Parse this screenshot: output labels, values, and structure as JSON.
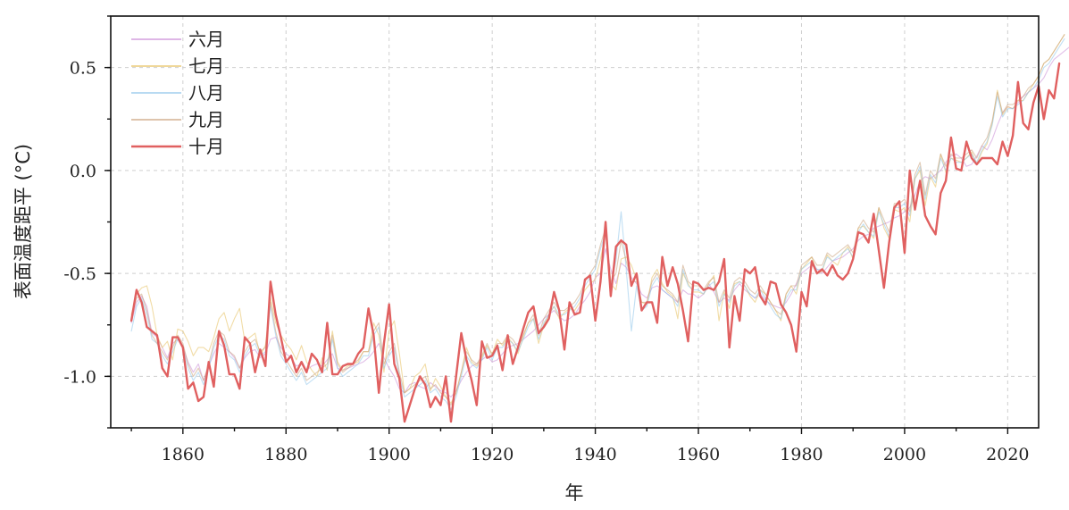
{
  "chart_data": {
    "type": "line",
    "title": "",
    "xlabel": "年",
    "ylabel": "表面温度距平 (°C)",
    "xlim": [
      1846,
      1826
    ],
    "ylim": [
      -1.25,
      0.75
    ],
    "xticks": [
      1860,
      1880,
      1900,
      1920,
      1940,
      1960,
      1980,
      2000,
      2020
    ],
    "yticks": [
      -1.0,
      -0.5,
      0.0,
      0.5
    ],
    "ytick_labels": [
      "-1.0",
      "-0.5",
      "0.0",
      "0.5"
    ],
    "grid": true,
    "legend_position": "top-left",
    "x_start": 1850,
    "series": [
      {
        "name": "六月",
        "color": "#c98ad6",
        "values": [
          -0.74,
          -0.64,
          -0.61,
          -0.66,
          -0.79,
          -0.81,
          -0.86,
          -0.91,
          -0.84,
          -0.82,
          -0.86,
          -0.93,
          -0.98,
          -0.94,
          -1.02,
          -0.95,
          -0.89,
          -0.84,
          -0.86,
          -0.88,
          -0.91,
          -0.96,
          -0.91,
          -0.88,
          -0.87,
          -0.91,
          -0.89,
          -0.82,
          -0.81,
          -0.86,
          -0.89,
          -0.91,
          -0.95,
          -0.94,
          -0.97,
          -0.95,
          -0.94,
          -0.95,
          -0.92,
          -0.89,
          -0.96,
          -0.97,
          -0.96,
          -0.95,
          -0.94,
          -0.93,
          -0.91,
          -0.88,
          -0.84,
          -0.91,
          -0.96,
          -1.0,
          -1.06,
          -1.08,
          -1.04,
          -1.03,
          -1.05,
          -1.06,
          -1.03,
          -1.05,
          -1.07,
          -1.08,
          -1.1,
          -1.07,
          -1.02,
          -0.98,
          -0.95,
          -0.94,
          -0.92,
          -0.9,
          -0.93,
          -0.92,
          -0.89,
          -0.86,
          -0.85,
          -0.84,
          -0.82,
          -0.8,
          -0.78,
          -0.75,
          -0.72,
          -0.7,
          -0.68,
          -0.71,
          -0.73,
          -0.72,
          -0.7,
          -0.66,
          -0.63,
          -0.59,
          -0.52,
          -0.5,
          -0.38,
          -0.48,
          -0.55,
          -0.45,
          -0.47,
          -0.52,
          -0.55,
          -0.6,
          -0.62,
          -0.57,
          -0.56,
          -0.58,
          -0.6,
          -0.62,
          -0.64,
          -0.58,
          -0.6,
          -0.6,
          -0.62,
          -0.6,
          -0.55,
          -0.59,
          -0.64,
          -0.62,
          -0.63,
          -0.58,
          -0.55,
          -0.58,
          -0.6,
          -0.62,
          -0.6,
          -0.63,
          -0.65,
          -0.66,
          -0.67,
          -0.64,
          -0.6,
          -0.55,
          -0.5,
          -0.48,
          -0.46,
          -0.48,
          -0.5,
          -0.47,
          -0.44,
          -0.43,
          -0.42,
          -0.4,
          -0.38,
          -0.34,
          -0.32,
          -0.31,
          -0.28,
          -0.27,
          -0.26,
          -0.25,
          -0.23,
          -0.22,
          -0.2,
          -0.18,
          -0.12,
          -0.05,
          -0.03,
          -0.04,
          -0.02,
          0.0,
          0.04,
          0.07,
          0.08,
          0.06,
          0.02,
          0.03,
          0.07,
          0.12,
          0.1,
          0.15,
          0.22,
          0.28,
          0.31,
          0.3,
          0.33,
          0.36,
          0.38,
          0.4,
          0.42,
          0.45,
          0.5,
          0.54,
          0.56,
          0.58,
          0.6
        ]
      },
      {
        "name": "七月",
        "color": "#e5bf5c",
        "values": [
          -0.7,
          -0.6,
          -0.57,
          -0.56,
          -0.66,
          -0.8,
          -0.86,
          -0.83,
          -0.92,
          -0.77,
          -0.78,
          -0.83,
          -0.9,
          -0.86,
          -0.86,
          -0.88,
          -0.81,
          -0.72,
          -0.69,
          -0.78,
          -0.72,
          -0.67,
          -0.83,
          -0.81,
          -0.79,
          -0.9,
          -0.85,
          -0.62,
          -0.74,
          -0.8,
          -0.84,
          -0.87,
          -0.92,
          -0.85,
          -0.93,
          -0.97,
          -1.0,
          -0.91,
          -0.97,
          -0.78,
          -0.93,
          -0.97,
          -0.95,
          -0.94,
          -0.93,
          -0.88,
          -0.88,
          -0.74,
          -0.8,
          -0.98,
          -0.78,
          -0.73,
          -0.89,
          -1.08,
          -1.06,
          -1.0,
          -0.98,
          -0.94,
          -1.07,
          -1.01,
          -1.05,
          -1.1,
          -1.13,
          -1.08,
          -0.98,
          -0.86,
          -0.93,
          -0.95,
          -0.91,
          -0.85,
          -0.89,
          -0.82,
          -0.85,
          -0.81,
          -0.84,
          -0.89,
          -0.81,
          -0.74,
          -0.72,
          -0.84,
          -0.75,
          -0.7,
          -0.66,
          -0.72,
          -0.69,
          -0.67,
          -0.68,
          -0.64,
          -0.58,
          -0.55,
          -0.53,
          -0.43,
          -0.3,
          -0.55,
          -0.58,
          -0.43,
          -0.42,
          -0.46,
          -0.53,
          -0.64,
          -0.65,
          -0.52,
          -0.48,
          -0.55,
          -0.59,
          -0.61,
          -0.72,
          -0.5,
          -0.55,
          -0.59,
          -0.59,
          -0.6,
          -0.55,
          -0.51,
          -0.73,
          -0.59,
          -0.67,
          -0.55,
          -0.54,
          -0.56,
          -0.61,
          -0.64,
          -0.58,
          -0.6,
          -0.64,
          -0.68,
          -0.73,
          -0.6,
          -0.56,
          -0.6,
          -0.48,
          -0.45,
          -0.42,
          -0.5,
          -0.49,
          -0.41,
          -0.44,
          -0.46,
          -0.4,
          -0.37,
          -0.43,
          -0.28,
          -0.27,
          -0.3,
          -0.33,
          -0.18,
          -0.28,
          -0.33,
          -0.19,
          -0.2,
          -0.18,
          -0.25,
          -0.04,
          0.0,
          -0.17,
          -0.03,
          -0.08,
          0.08,
          -0.01,
          0.06,
          0.05,
          0.04,
          0.06,
          0.09,
          0.03,
          0.09,
          0.13,
          0.23,
          0.39,
          0.27,
          0.31,
          0.3,
          0.34,
          0.34,
          0.38,
          0.42,
          0.46,
          0.52,
          0.54,
          0.58,
          0.62,
          0.66
        ]
      },
      {
        "name": "八月",
        "color": "#8ec4ea",
        "values": [
          -0.78,
          -0.66,
          -0.62,
          -0.7,
          -0.82,
          -0.84,
          -0.9,
          -0.94,
          -0.88,
          -0.82,
          -0.86,
          -0.96,
          -1.02,
          -0.98,
          -1.04,
          -0.96,
          -0.86,
          -0.8,
          -0.82,
          -0.9,
          -0.92,
          -0.98,
          -0.9,
          -0.86,
          -0.84,
          -0.9,
          -0.88,
          -0.66,
          -0.8,
          -0.9,
          -0.94,
          -0.98,
          -1.02,
          -0.98,
          -1.04,
          -1.02,
          -1.0,
          -0.98,
          -0.96,
          -0.82,
          -0.96,
          -1.0,
          -0.98,
          -0.96,
          -0.94,
          -0.9,
          -0.9,
          -0.8,
          -0.76,
          -0.96,
          -0.9,
          -0.86,
          -1.0,
          -1.1,
          -1.08,
          -1.06,
          -1.04,
          -1.02,
          -1.08,
          -1.06,
          -1.1,
          -1.12,
          -1.16,
          -1.1,
          -1.0,
          -0.9,
          -0.94,
          -0.96,
          -0.92,
          -0.86,
          -0.92,
          -0.86,
          -0.86,
          -0.82,
          -0.84,
          -0.88,
          -0.82,
          -0.76,
          -0.72,
          -0.82,
          -0.74,
          -0.7,
          -0.66,
          -0.7,
          -0.7,
          -0.68,
          -0.66,
          -0.62,
          -0.56,
          -0.52,
          -0.48,
          -0.38,
          -0.3,
          -0.56,
          -0.44,
          -0.2,
          -0.48,
          -0.78,
          -0.56,
          -0.68,
          -0.66,
          -0.56,
          -0.52,
          -0.58,
          -0.6,
          -0.62,
          -0.66,
          -0.48,
          -0.56,
          -0.58,
          -0.58,
          -0.6,
          -0.56,
          -0.54,
          -0.66,
          -0.6,
          -0.64,
          -0.56,
          -0.54,
          -0.56,
          -0.6,
          -0.62,
          -0.58,
          -0.62,
          -0.66,
          -0.7,
          -0.72,
          -0.62,
          -0.58,
          -0.58,
          -0.48,
          -0.46,
          -0.44,
          -0.48,
          -0.48,
          -0.42,
          -0.44,
          -0.42,
          -0.4,
          -0.38,
          -0.42,
          -0.3,
          -0.26,
          -0.3,
          -0.32,
          -0.2,
          -0.26,
          -0.32,
          -0.18,
          -0.18,
          -0.16,
          -0.22,
          -0.04,
          0.02,
          -0.14,
          -0.02,
          -0.06,
          0.06,
          0.0,
          0.06,
          0.04,
          0.04,
          0.06,
          0.08,
          0.04,
          0.1,
          0.14,
          0.22,
          0.36,
          0.26,
          0.3,
          0.3,
          0.32,
          0.34,
          0.38,
          0.4,
          0.44,
          0.5,
          0.52,
          0.56,
          0.6,
          0.64
        ]
      },
      {
        "name": "九月",
        "color": "#c9a07a",
        "values": [
          -0.72,
          -0.62,
          -0.6,
          -0.68,
          -0.8,
          -0.84,
          -0.88,
          -0.92,
          -0.86,
          -0.8,
          -0.84,
          -0.94,
          -1.0,
          -0.96,
          -1.02,
          -0.94,
          -0.84,
          -0.78,
          -0.8,
          -0.88,
          -0.9,
          -0.96,
          -0.88,
          -0.84,
          -0.82,
          -0.88,
          -0.86,
          -0.64,
          -0.78,
          -0.88,
          -0.92,
          -0.96,
          -1.0,
          -0.96,
          -1.02,
          -1.0,
          -0.98,
          -0.96,
          -0.94,
          -0.8,
          -0.94,
          -0.98,
          -0.96,
          -0.94,
          -0.92,
          -0.88,
          -0.88,
          -0.78,
          -0.74,
          -0.94,
          -0.88,
          -0.84,
          -0.98,
          -1.08,
          -1.06,
          -1.04,
          -1.02,
          -1.0,
          -1.06,
          -1.04,
          -1.08,
          -1.1,
          -1.14,
          -1.08,
          -0.98,
          -0.88,
          -0.92,
          -0.94,
          -0.9,
          -0.84,
          -0.9,
          -0.84,
          -0.84,
          -0.8,
          -0.82,
          -0.86,
          -0.8,
          -0.74,
          -0.7,
          -0.8,
          -0.72,
          -0.68,
          -0.64,
          -0.68,
          -0.68,
          -0.66,
          -0.64,
          -0.6,
          -0.54,
          -0.5,
          -0.46,
          -0.36,
          -0.28,
          -0.54,
          -0.5,
          -0.34,
          -0.44,
          -0.54,
          -0.54,
          -0.64,
          -0.64,
          -0.54,
          -0.5,
          -0.56,
          -0.58,
          -0.6,
          -0.64,
          -0.46,
          -0.54,
          -0.56,
          -0.56,
          -0.58,
          -0.54,
          -0.52,
          -0.64,
          -0.58,
          -0.62,
          -0.54,
          -0.52,
          -0.54,
          -0.58,
          -0.6,
          -0.56,
          -0.6,
          -0.64,
          -0.68,
          -0.7,
          -0.6,
          -0.56,
          -0.56,
          -0.46,
          -0.44,
          -0.42,
          -0.46,
          -0.46,
          -0.4,
          -0.42,
          -0.4,
          -0.38,
          -0.36,
          -0.4,
          -0.28,
          -0.24,
          -0.28,
          -0.3,
          -0.18,
          -0.24,
          -0.3,
          -0.16,
          -0.16,
          -0.14,
          -0.2,
          -0.02,
          0.04,
          -0.12,
          0.0,
          -0.04,
          0.08,
          0.02,
          0.08,
          0.06,
          0.06,
          0.08,
          0.1,
          0.06,
          0.12,
          0.16,
          0.24,
          0.38,
          0.28,
          0.32,
          0.32,
          0.34,
          0.36,
          0.4,
          0.42,
          0.46,
          0.52,
          0.54,
          0.58,
          0.62,
          0.66
        ]
      },
      {
        "name": "十月",
        "color": "#e06060",
        "values": [
          -0.73,
          -0.58,
          -0.64,
          -0.76,
          -0.78,
          -0.8,
          -0.96,
          -1.0,
          -0.81,
          -0.81,
          -0.86,
          -1.06,
          -1.03,
          -1.12,
          -1.1,
          -0.93,
          -1.05,
          -0.78,
          -0.85,
          -0.99,
          -0.99,
          -1.06,
          -0.81,
          -0.84,
          -0.98,
          -0.87,
          -0.95,
          -0.54,
          -0.7,
          -0.81,
          -0.93,
          -0.9,
          -0.98,
          -0.93,
          -0.98,
          -0.89,
          -0.92,
          -0.98,
          -0.74,
          -0.99,
          -0.99,
          -0.95,
          -0.94,
          -0.94,
          -0.89,
          -0.86,
          -0.67,
          -0.8,
          -1.08,
          -0.84,
          -0.65,
          -0.94,
          -1.01,
          -1.22,
          -1.14,
          -1.06,
          -1.0,
          -1.04,
          -1.15,
          -1.1,
          -1.14,
          -1.0,
          -1.22,
          -1.0,
          -0.79,
          -0.92,
          -1.02,
          -1.14,
          -0.83,
          -0.91,
          -0.9,
          -0.85,
          -0.97,
          -0.8,
          -0.94,
          -0.86,
          -0.77,
          -0.69,
          -0.66,
          -0.79,
          -0.76,
          -0.72,
          -0.59,
          -0.68,
          -0.87,
          -0.64,
          -0.7,
          -0.69,
          -0.53,
          -0.51,
          -0.73,
          -0.54,
          -0.25,
          -0.61,
          -0.37,
          -0.34,
          -0.36,
          -0.56,
          -0.5,
          -0.68,
          -0.64,
          -0.64,
          -0.74,
          -0.42,
          -0.56,
          -0.47,
          -0.55,
          -0.68,
          -0.83,
          -0.54,
          -0.55,
          -0.58,
          -0.57,
          -0.58,
          -0.54,
          -0.43,
          -0.86,
          -0.61,
          -0.73,
          -0.48,
          -0.5,
          -0.47,
          -0.61,
          -0.65,
          -0.54,
          -0.55,
          -0.65,
          -0.69,
          -0.75,
          -0.88,
          -0.59,
          -0.66,
          -0.44,
          -0.5,
          -0.48,
          -0.51,
          -0.46,
          -0.51,
          -0.53,
          -0.5,
          -0.43,
          -0.3,
          -0.31,
          -0.35,
          -0.21,
          -0.39,
          -0.57,
          -0.35,
          -0.18,
          -0.15,
          -0.4,
          0.0,
          -0.19,
          -0.05,
          -0.22,
          -0.27,
          -0.31,
          -0.11,
          -0.05,
          0.16,
          0.01,
          0.0,
          0.14,
          0.06,
          0.03,
          0.06,
          0.06,
          0.06,
          0.03,
          0.14,
          0.07,
          0.17,
          0.43,
          0.23,
          0.2,
          0.33,
          0.41,
          0.25,
          0.39,
          0.35,
          0.52
        ]
      }
    ]
  }
}
